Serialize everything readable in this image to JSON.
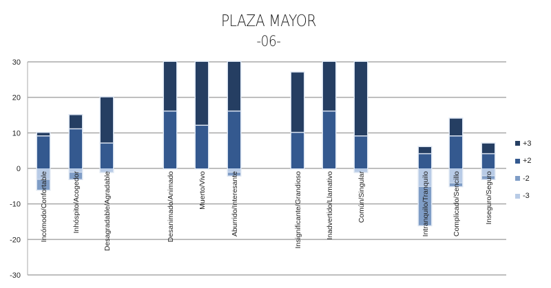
{
  "title": "PLAZA MAYOR",
  "subtitle": "-06-",
  "colors": {
    "p3": "#253e62",
    "p2": "#34598f",
    "n2": "#7f9dc6",
    "n3": "#b8cbe6",
    "grid": "#a8a8a8",
    "axis_text": "#222222"
  },
  "legend": [
    {
      "label": "+3",
      "color": "#253e62"
    },
    {
      "label": "+2",
      "color": "#34598f"
    },
    {
      "label": "-2",
      "color": "#7f9dc6"
    },
    {
      "label": "-3",
      "color": "#b8cbe6"
    }
  ],
  "chart_data": {
    "type": "bar",
    "stacked": true,
    "title": "PLAZA MAYOR -06-",
    "xlabel": "",
    "ylabel": "",
    "ylim": [
      -30,
      30
    ],
    "yticks": [
      30,
      20,
      10,
      0,
      -10,
      -20,
      -30
    ],
    "grid": true,
    "legend_position": "right",
    "categories": [
      "Incómodo/Confortable",
      "Inhóspito/Acogedor",
      "Desagradable/Agradable",
      "Desanimado/Animado",
      "Muerto/Vivo",
      "Aburrido/Interesante",
      "Insignificante/Grandioso",
      "Inadvertido/Llamativo",
      "Común/Singular",
      "Intranquilo/Tranquilo",
      "Complicado/Sencillo",
      "Inseguro/Seguro"
    ],
    "series": [
      {
        "name": "+3",
        "values": [
          1,
          4,
          13,
          14,
          18,
          14,
          17,
          14,
          21,
          2,
          5,
          3
        ]
      },
      {
        "name": "+2",
        "values": [
          9,
          11,
          7,
          16,
          12,
          16,
          10,
          16,
          9,
          4,
          9,
          4
        ]
      },
      {
        "name": "-2",
        "values": [
          -3,
          -1,
          -1,
          0,
          0,
          -1,
          0,
          0,
          -1,
          -5,
          -4,
          -2
        ]
      },
      {
        "name": "-3",
        "values": [
          -3,
          -2,
          0,
          0,
          0,
          -1,
          0,
          0,
          0,
          -11,
          -1,
          -1
        ]
      }
    ]
  }
}
